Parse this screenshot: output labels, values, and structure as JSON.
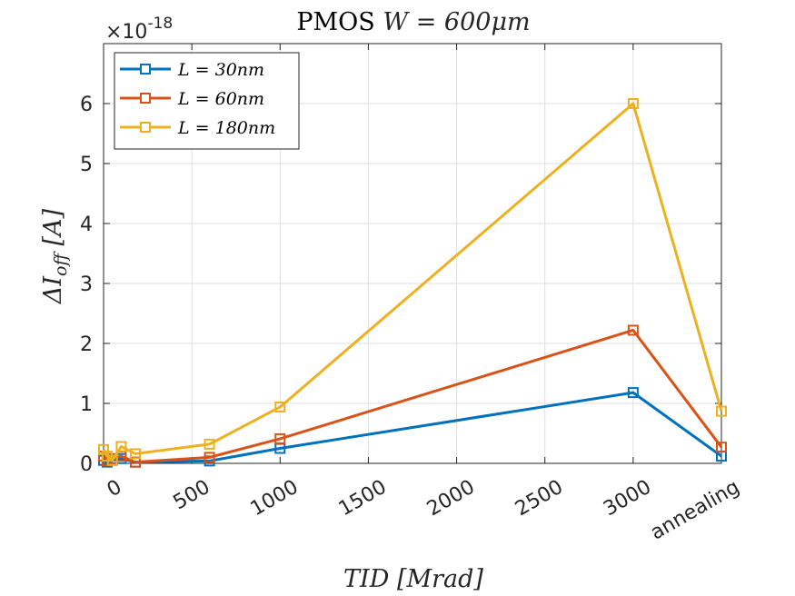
{
  "chart_data": {
    "type": "line",
    "title": "PMOS W = 600μm",
    "title_plain": "PMOS ",
    "title_math": "W = 600μm",
    "xlabel": "TID [Mrad]",
    "ylabel": "ΔI_off [A]",
    "ylabel_main": "ΔI",
    "ylabel_sub": "off",
    "ylabel_unit": " [A]",
    "y_exponent_prefix": "×10",
    "y_exponent": "-18",
    "xlim": [
      0,
      3500
    ],
    "ylim": [
      0,
      7
    ],
    "x_ticks": [
      0,
      500,
      1000,
      1500,
      2000,
      2500,
      3000,
      3500
    ],
    "x_tick_labels": [
      "0",
      "500",
      "1000",
      "1500",
      "2000",
      "2500",
      "3000",
      "annealing"
    ],
    "y_ticks": [
      0,
      1,
      2,
      3,
      4,
      5,
      6
    ],
    "y_tick_labels": [
      "0",
      "1",
      "2",
      "3",
      "4",
      "5",
      "6"
    ],
    "grid": true,
    "legend_position": "top-left",
    "series": [
      {
        "name": "L = 30nm",
        "color": "#0072BD",
        "points": [
          [
            0,
            0.05
          ],
          [
            20,
            0.02
          ],
          [
            50,
            0.05
          ],
          [
            100,
            0.08
          ],
          [
            180,
            0.02
          ],
          [
            600,
            0.04
          ],
          [
            1000,
            0.25
          ],
          [
            3000,
            1.18
          ],
          [
            3500,
            0.12
          ]
        ]
      },
      {
        "name": "L = 60nm",
        "color": "#D95319",
        "points": [
          [
            0,
            0.12
          ],
          [
            20,
            0.04
          ],
          [
            50,
            0.08
          ],
          [
            100,
            0.12
          ],
          [
            180,
            0.02
          ],
          [
            600,
            0.1
          ],
          [
            1000,
            0.41
          ],
          [
            3000,
            2.22
          ],
          [
            3500,
            0.27
          ]
        ]
      },
      {
        "name": "L = 180nm",
        "color": "#EDB120",
        "points": [
          [
            0,
            0.23
          ],
          [
            20,
            0.12
          ],
          [
            50,
            0.05
          ],
          [
            100,
            0.28
          ],
          [
            180,
            0.16
          ],
          [
            600,
            0.32
          ],
          [
            1000,
            0.94
          ],
          [
            3000,
            6.0
          ],
          [
            3500,
            0.87
          ]
        ]
      }
    ]
  }
}
